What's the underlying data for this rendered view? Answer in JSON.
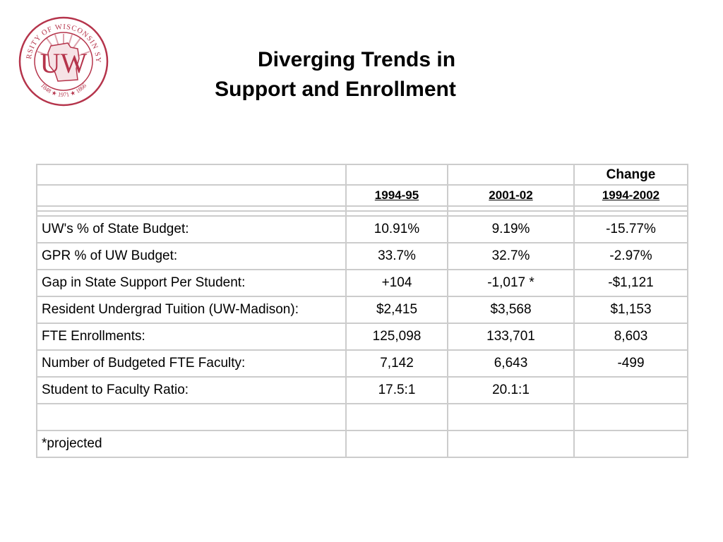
{
  "logo": {
    "ring_text_top": "UNIVERSITY OF WISCONSIN SYSTEM",
    "monogram": "UW",
    "years": "1848 ★ 1971 ★ 1866",
    "color": "#b5344b"
  },
  "title": {
    "line1": "Diverging Trends in",
    "line2": "Support and Enrollment"
  },
  "table": {
    "header_top": [
      "",
      "",
      "",
      "Change"
    ],
    "header_bottom": [
      "",
      "1994-95",
      "2001-02",
      "1994-2002"
    ],
    "rows": [
      [
        "UW's % of State Budget:",
        "10.91%",
        "9.19%",
        "-15.77%"
      ],
      [
        "GPR % of UW Budget:",
        "33.7%",
        "32.7%",
        "-2.97%"
      ],
      [
        "Gap in State Support Per Student:",
        "+104",
        "-1,017 *",
        "-$1,121"
      ],
      [
        "Resident Undergrad Tuition (UW-Madison):",
        "$2,415",
        "$3,568",
        "$1,153"
      ],
      [
        "FTE Enrollments:",
        "125,098",
        "133,701",
        "8,603"
      ],
      [
        "Number of Budgeted FTE Faculty:",
        "7,142",
        "6,643",
        "-499"
      ],
      [
        "Student to Faculty Ratio:",
        "17.5:1",
        "20.1:1",
        ""
      ],
      [
        "",
        "",
        "",
        ""
      ],
      [
        "*projected",
        "",
        "",
        ""
      ]
    ]
  }
}
